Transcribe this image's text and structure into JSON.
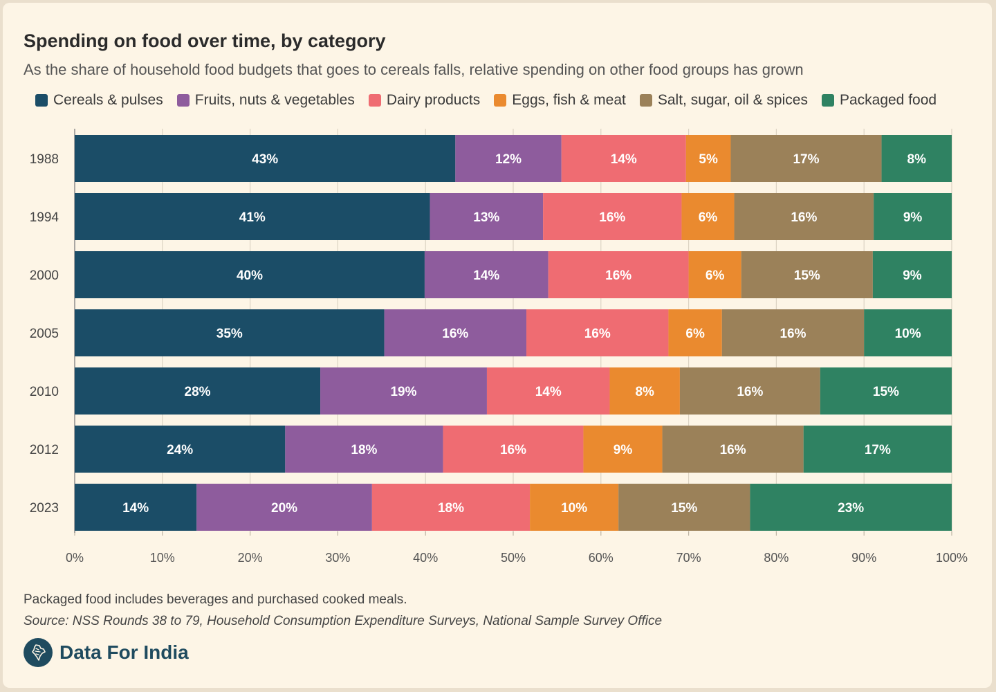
{
  "title": "Spending on food over time, by category",
  "subtitle": "As the share of household food budgets that goes to cereals falls, relative spending on other food groups has grown",
  "footnote": "Packaged food includes beverages and purchased cooked meals.",
  "source": "Source: NSS Rounds 38 to 79, Household Consumption Expenditure Surveys, National Sample Survey Office",
  "brand": {
    "name": "Data For India",
    "icon": "india-map-logo-icon"
  },
  "chart_data": {
    "type": "bar",
    "orientation": "horizontal",
    "stacked": true,
    "title": "Spending on food over time, by category",
    "categories": [
      "1988",
      "1994",
      "2000",
      "2005",
      "2010",
      "2012",
      "2023"
    ],
    "series": [
      {
        "name": "Cereals & pulses",
        "color": "#1b4d67",
        "values": [
          43.4,
          40.5,
          39.9,
          35.3,
          28.0,
          24.0,
          13.9
        ],
        "labels": [
          "43%",
          "41%",
          "40%",
          "35%",
          "28%",
          "24%",
          "14%"
        ]
      },
      {
        "name": "Fruits, nuts & vegetables",
        "color": "#8e5c9d",
        "values": [
          12.1,
          12.9,
          14.1,
          16.2,
          19.0,
          18.0,
          20.0
        ],
        "labels": [
          "12%",
          "13%",
          "14%",
          "16%",
          "19%",
          "18%",
          "20%"
        ]
      },
      {
        "name": "Dairy products",
        "color": "#ef6c72",
        "values": [
          14.2,
          15.8,
          16.0,
          16.2,
          14.0,
          16.0,
          18.0
        ],
        "labels": [
          "14%",
          "16%",
          "16%",
          "16%",
          "14%",
          "16%",
          "18%"
        ]
      },
      {
        "name": "Eggs, fish & meat",
        "color": "#ea8a2f",
        "values": [
          5.1,
          6.0,
          6.0,
          6.1,
          8.0,
          9.0,
          10.1
        ],
        "labels": [
          "5%",
          "6%",
          "6%",
          "6%",
          "8%",
          "9%",
          "10%"
        ]
      },
      {
        "name": "Salt, sugar, oil & spices",
        "color": "#9b8159",
        "values": [
          17.2,
          15.9,
          15.0,
          16.2,
          16.0,
          16.1,
          15.0
        ],
        "labels": [
          "17%",
          "16%",
          "15%",
          "16%",
          "16%",
          "16%",
          "15%"
        ]
      },
      {
        "name": "Packaged food",
        "color": "#2f8262",
        "values": [
          8.0,
          8.9,
          9.0,
          10.0,
          15.0,
          16.9,
          23.0
        ],
        "labels": [
          "8%",
          "9%",
          "9%",
          "10%",
          "15%",
          "17%",
          "23%"
        ]
      }
    ],
    "xlim": [
      0,
      100
    ],
    "xticks": [
      0,
      10,
      20,
      30,
      40,
      50,
      60,
      70,
      80,
      90,
      100
    ],
    "xtick_labels": [
      "0%",
      "10%",
      "20%",
      "30%",
      "40%",
      "50%",
      "60%",
      "70%",
      "80%",
      "90%",
      "100%"
    ],
    "xlabel": "",
    "ylabel": "",
    "grid": "vertical",
    "legend": "top"
  }
}
